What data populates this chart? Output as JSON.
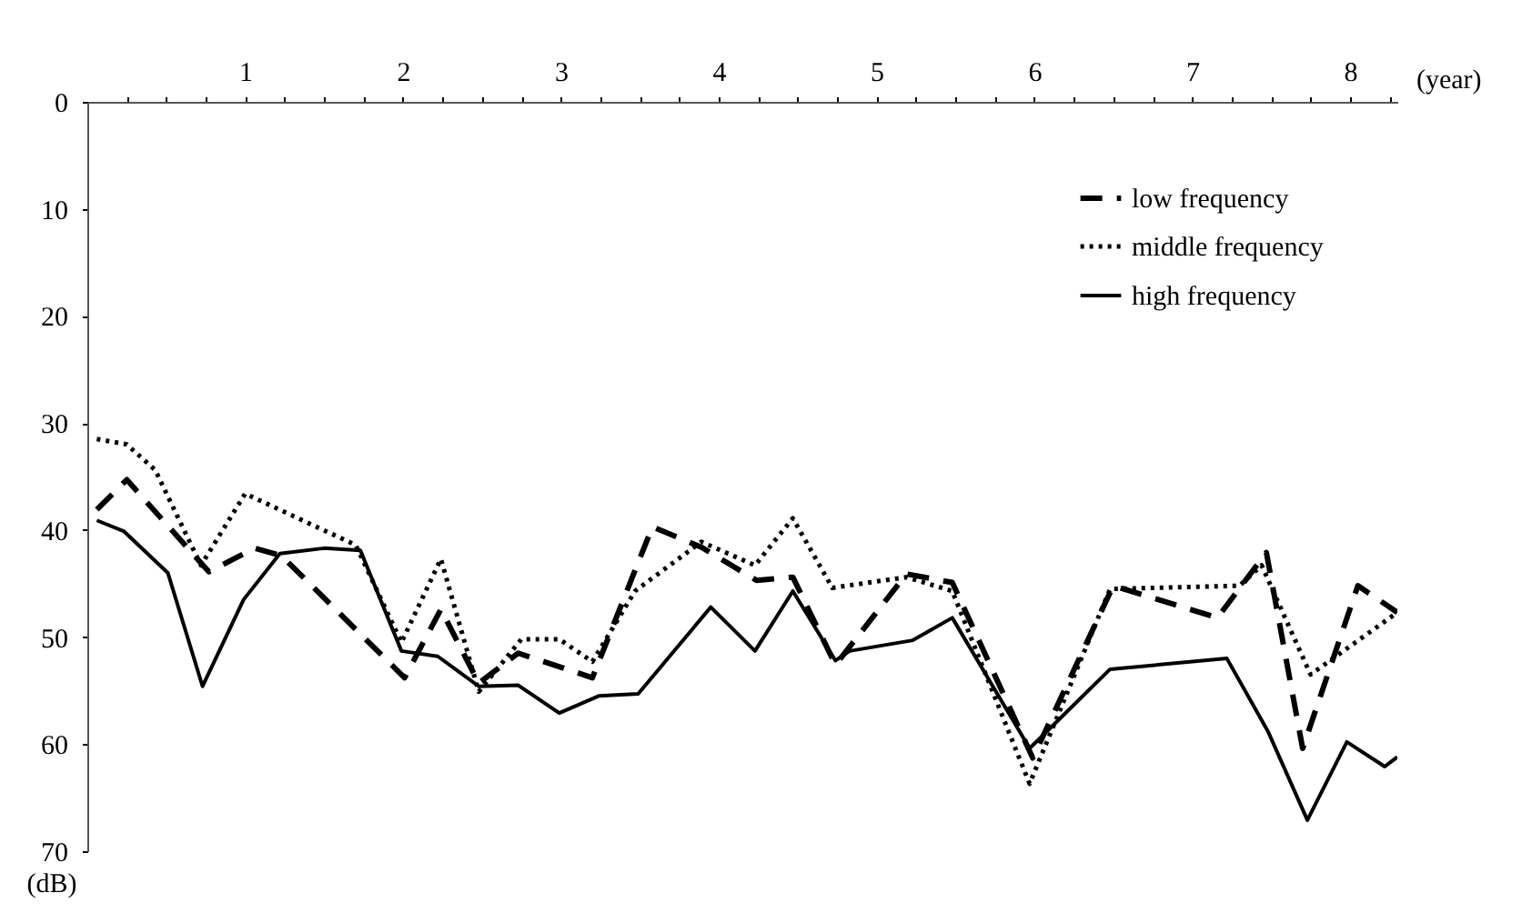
{
  "chart_data": {
    "type": "line",
    "xlabel": "(year)",
    "ylabel": "(dB)",
    "xlim": [
      0,
      8.3
    ],
    "ylim": [
      70,
      0
    ],
    "xticks": [
      {
        "value": 0.25,
        "label": null
      },
      {
        "value": 0.5,
        "label": null
      },
      {
        "value": 0.75,
        "label": null
      },
      1,
      {
        "value": 1.25,
        "label": null
      },
      {
        "value": 1.5,
        "label": null
      },
      {
        "value": 1.75,
        "label": null
      },
      2,
      {
        "value": 2.25,
        "label": null
      },
      {
        "value": 2.5,
        "label": null
      },
      {
        "value": 2.75,
        "label": null
      },
      3,
      {
        "value": 3.25,
        "label": null
      },
      {
        "value": 3.5,
        "label": null
      },
      {
        "value": 3.75,
        "label": null
      },
      4,
      {
        "value": 4.25,
        "label": null
      },
      {
        "value": 4.5,
        "label": null
      },
      {
        "value": 4.75,
        "label": null
      },
      5,
      {
        "value": 5.25,
        "label": null
      },
      {
        "value": 5.5,
        "label": null
      },
      {
        "value": 5.75,
        "label": null
      },
      6,
      {
        "value": 6.25,
        "label": null
      },
      {
        "value": 6.5,
        "label": null
      },
      {
        "value": 6.75,
        "label": null
      },
      7,
      {
        "value": 7.25,
        "label": null
      },
      {
        "value": 7.5,
        "label": null
      },
      {
        "value": 7.75,
        "label": null
      },
      8,
      {
        "value": 8.25,
        "label": null
      }
    ],
    "yticks": [
      0,
      10,
      20,
      30,
      40,
      50,
      60,
      70
    ],
    "grid": false,
    "legend": "top right",
    "marker": "none",
    "series": [
      {
        "name": "low frequency",
        "color": "#000000",
        "line_style": "dashed",
        "x": [
          0.06,
          0.25,
          0.77,
          1.06,
          1.23,
          2.01,
          2.24,
          2.48,
          2.73,
          3.2,
          3.58,
          3.89,
          4.24,
          4.47,
          4.74,
          5.19,
          5.48,
          5.99,
          6.5,
          7.16,
          7.47,
          7.7,
          8.05,
          8.3
        ],
        "values": [
          38.1,
          35.3,
          43.9,
          41.7,
          42.4,
          53.8,
          47.4,
          54.3,
          51.5,
          53.8,
          39.7,
          41.6,
          44.7,
          44.4,
          52.6,
          44.1,
          44.9,
          61.3,
          45.2,
          48.2,
          42.1,
          60.4,
          45.2,
          47.7
        ]
      },
      {
        "name": "middle frequency",
        "color": "#000000",
        "line_style": "dotted",
        "x": [
          0.06,
          0.25,
          0.43,
          0.72,
          1.0,
          1.7,
          1.99,
          2.24,
          2.48,
          2.75,
          2.99,
          3.2,
          3.47,
          3.89,
          4.23,
          4.47,
          4.72,
          5.19,
          5.48,
          5.97,
          6.48,
          7.3,
          7.44,
          7.75,
          8.3
        ],
        "values": [
          31.5,
          32.0,
          34.4,
          43.3,
          36.6,
          41.4,
          50.5,
          42.7,
          55.1,
          50.2,
          50.2,
          52.3,
          45.7,
          41.1,
          43.3,
          38.9,
          45.4,
          44.4,
          45.7,
          63.7,
          45.5,
          45.2,
          43.3,
          53.5,
          47.7
        ]
      },
      {
        "name": "high frequency",
        "color": "#000000",
        "line_style": "solid",
        "x": [
          0.06,
          0.23,
          0.51,
          0.73,
          0.99,
          1.22,
          1.5,
          1.73,
          1.99,
          2.22,
          2.48,
          2.73,
          2.99,
          3.24,
          3.49,
          3.95,
          4.23,
          4.47,
          4.74,
          4.83,
          5.23,
          5.48,
          5.97,
          6.48,
          7.22,
          7.48,
          7.73,
          7.98,
          8.22,
          8.3
        ],
        "values": [
          39.1,
          40.1,
          44.0,
          54.6,
          46.5,
          42.2,
          41.7,
          41.9,
          51.3,
          51.8,
          54.6,
          54.5,
          57.1,
          55.5,
          55.3,
          47.2,
          51.3,
          45.7,
          52.2,
          51.3,
          50.3,
          48.2,
          60.4,
          53.0,
          52.0,
          58.8,
          67.1,
          59.8,
          62.1,
          61.2
        ]
      }
    ]
  }
}
